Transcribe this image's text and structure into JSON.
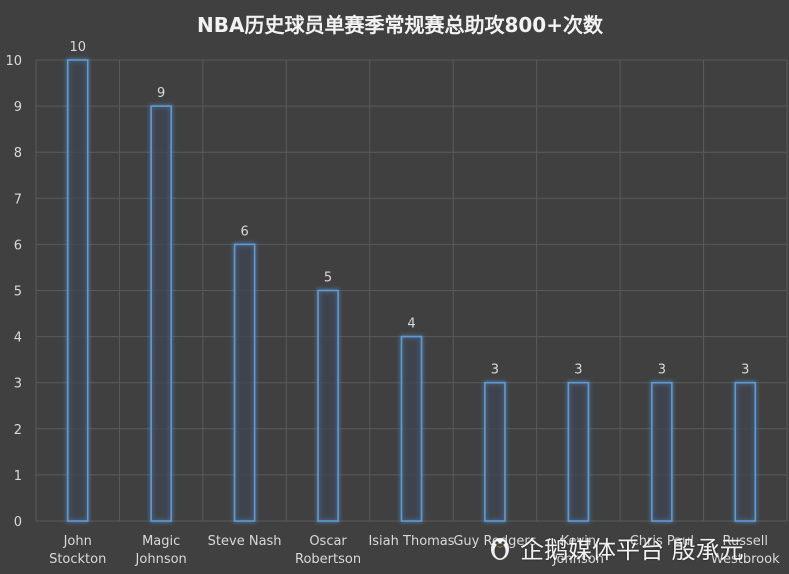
{
  "chart_data": {
    "type": "bar",
    "title": "NBA历史球员单赛季常规赛总助攻800+次数",
    "categories": [
      [
        "John",
        "Stockton"
      ],
      [
        "Magic",
        "Johnson"
      ],
      [
        "Steve Nash"
      ],
      [
        "Oscar",
        "Robertson"
      ],
      [
        "Isiah Thomas"
      ],
      [
        "Guy Rodgers"
      ],
      [
        "Kevin",
        "Johnson"
      ],
      [
        "Chris Paul"
      ],
      [
        "Russell",
        "Westbrook"
      ]
    ],
    "values": [
      10,
      9,
      6,
      5,
      4,
      3,
      3,
      3,
      3
    ],
    "ylim": [
      0,
      10
    ],
    "yticks": [
      0,
      1,
      2,
      3,
      4,
      5,
      6,
      7,
      8,
      9,
      10
    ],
    "grid": true,
    "colors": {
      "background": "#404040",
      "grid": "#5a5a5a",
      "bar_outline": "#5b9bd5",
      "text": "#d9d9d9",
      "title": "#f2f2f2"
    }
  },
  "watermark": {
    "icon": "penguin-logo-icon",
    "text": "企鹅媒体平台 殷承元"
  }
}
